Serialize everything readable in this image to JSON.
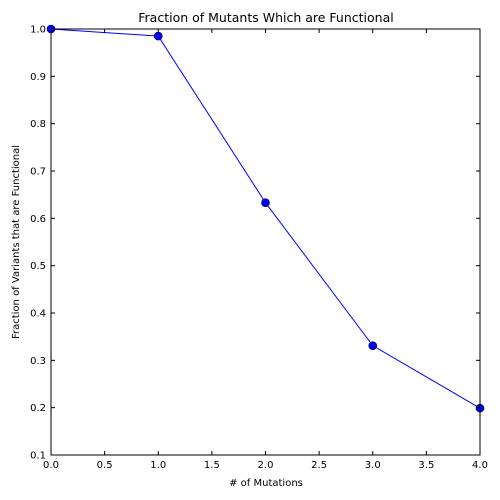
{
  "chart_data": {
    "type": "line",
    "title": "Fraction of Mutants Which are Functional",
    "xlabel": "# of Mutations",
    "ylabel": "Fraction of Variants that are Functional",
    "xlim": [
      0.0,
      4.0
    ],
    "ylim": [
      0.1,
      1.0
    ],
    "x_ticks": [
      "0.0",
      "0.5",
      "1.0",
      "1.5",
      "2.0",
      "2.5",
      "3.0",
      "3.5",
      "4.0"
    ],
    "y_ticks": [
      "0.1",
      "0.2",
      "0.3",
      "0.4",
      "0.5",
      "0.6",
      "0.7",
      "0.8",
      "0.9",
      "1.0"
    ],
    "grid": false,
    "series": [
      {
        "color": "#0000ff",
        "marker": "circle",
        "x": [
          0,
          1,
          2,
          3,
          4
        ],
        "y": [
          1.0,
          0.985,
          0.633,
          0.331,
          0.199
        ]
      }
    ]
  }
}
